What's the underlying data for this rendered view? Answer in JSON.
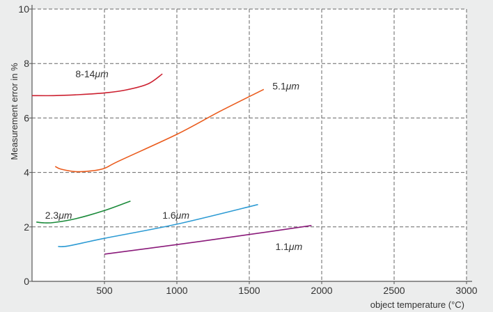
{
  "colors": {
    "background": "#eceded",
    "plot_background": "#ffffff",
    "axis": "#555555",
    "grid": "#666666",
    "text": "#333333"
  },
  "chart_data": {
    "type": "line",
    "title": "",
    "xlabel": "object temperature (°C)",
    "ylabel": "Measurement error in %",
    "xlim": [
      0,
      3000
    ],
    "ylim": [
      0,
      10
    ],
    "x_ticks": [
      500,
      1000,
      1500,
      2000,
      2500,
      3000
    ],
    "x_tick_labels": [
      "500",
      "1000",
      "1500",
      "2000",
      "2500",
      "3000"
    ],
    "y_ticks": [
      0,
      2,
      4,
      6,
      8,
      10
    ],
    "y_tick_labels": [
      "0",
      "2",
      "4",
      "6",
      "8",
      "10"
    ],
    "grid": true,
    "grid_style": "dashed",
    "series": [
      {
        "name": "8-14μm",
        "label_text": "8-14",
        "label_unit": "μm",
        "label_at": [
          300,
          7.5
        ],
        "color": "#cc1f2f",
        "points": [
          [
            0,
            6.82
          ],
          [
            150,
            6.82
          ],
          [
            300,
            6.85
          ],
          [
            500,
            6.92
          ],
          [
            650,
            7.03
          ],
          [
            800,
            7.25
          ],
          [
            900,
            7.62
          ]
        ]
      },
      {
        "name": "5.1μm",
        "label_text": "5.1",
        "label_unit": "μm",
        "label_at": [
          1660,
          7.05
        ],
        "color": "#ea5b1c",
        "points": [
          [
            160,
            4.22
          ],
          [
            200,
            4.12
          ],
          [
            300,
            4.03
          ],
          [
            400,
            4.05
          ],
          [
            500,
            4.15
          ],
          [
            600,
            4.42
          ],
          [
            1000,
            5.4
          ],
          [
            1300,
            6.25
          ],
          [
            1600,
            7.05
          ]
        ]
      },
      {
        "name": "2.3μm",
        "label_text": "2.3",
        "label_unit": "μm",
        "label_at": [
          90,
          2.3
        ],
        "color": "#1a8a3a",
        "points": [
          [
            30,
            2.18
          ],
          [
            80,
            2.15
          ],
          [
            150,
            2.16
          ],
          [
            300,
            2.3
          ],
          [
            500,
            2.6
          ],
          [
            680,
            2.95
          ]
        ]
      },
      {
        "name": "1.6μm",
        "label_text": "1.6",
        "label_unit": "μm",
        "label_at": [
          900,
          2.3
        ],
        "color": "#2d9bd4",
        "points": [
          [
            180,
            1.28
          ],
          [
            250,
            1.3
          ],
          [
            500,
            1.58
          ],
          [
            1000,
            2.1
          ],
          [
            1560,
            2.82
          ]
        ]
      },
      {
        "name": "1.1μm",
        "label_text": "1.1",
        "label_unit": "μm",
        "label_at": [
          1680,
          1.15
        ],
        "color": "#8a1a7a",
        "points": [
          [
            500,
            1.0
          ],
          [
            1000,
            1.35
          ],
          [
            1500,
            1.72
          ],
          [
            1930,
            2.05
          ]
        ]
      }
    ]
  }
}
